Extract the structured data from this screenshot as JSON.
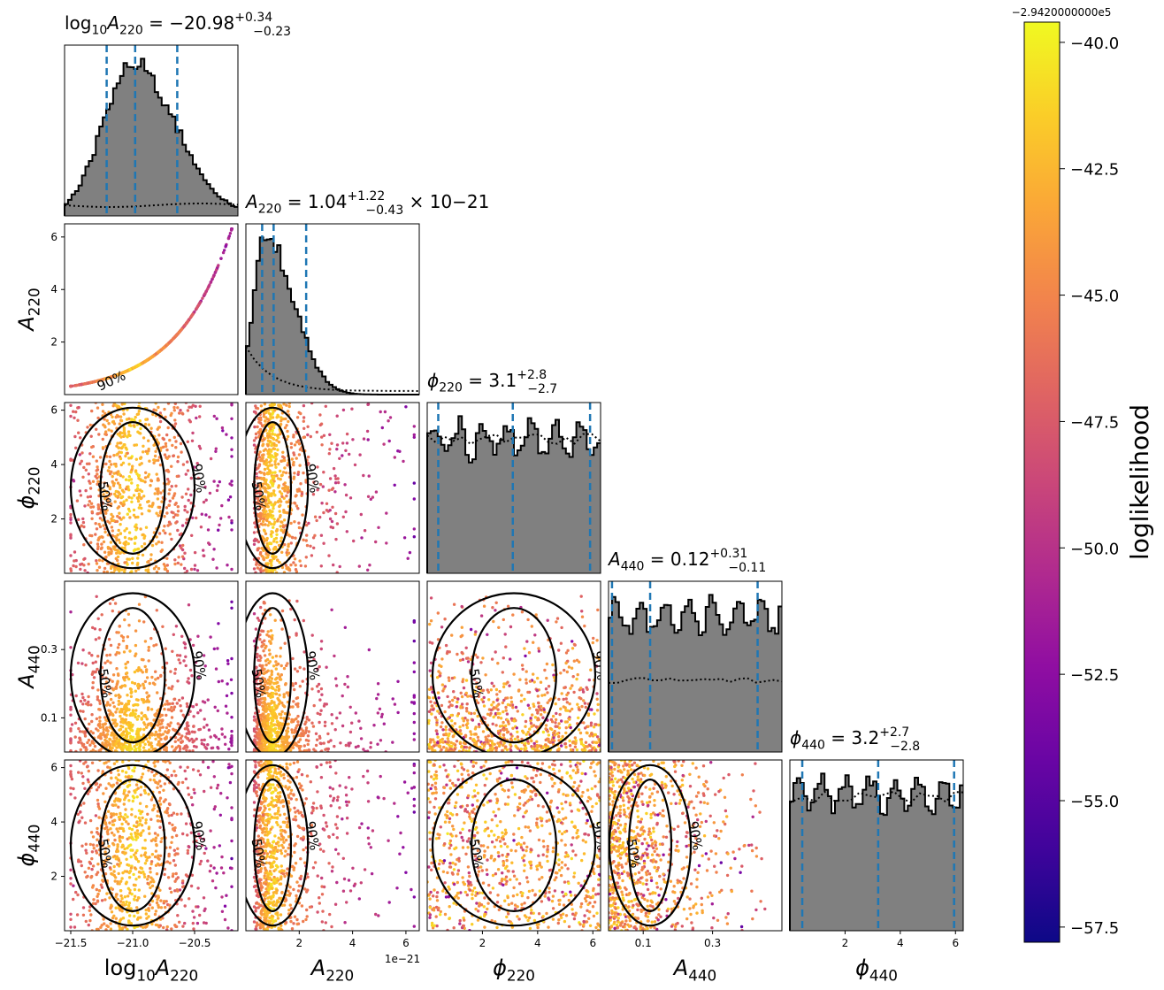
{
  "chart_data": {
    "type": "corner",
    "parameters": [
      {
        "key": "logA220",
        "label": "log10A220",
        "ticks": [
          -21.5,
          -21.0,
          -20.5
        ],
        "tick_labels": [
          "−21.5",
          "−21.0",
          "−20.5"
        ],
        "range": [
          -21.55,
          -20.15
        ],
        "title_value": "−20.98",
        "title_plus": "+0.34",
        "title_minus": "−0.23",
        "quantiles": [
          -21.21,
          -20.98,
          -20.64
        ],
        "hist_peak": -21.0,
        "hist_sigma": 0.24,
        "hist_skew": 0.45,
        "prior": "flat"
      },
      {
        "key": "A220",
        "label": "A220",
        "ticks": [
          2,
          4,
          6
        ],
        "tick_labels": [
          "2",
          "4",
          "6"
        ],
        "range": [
          0.0,
          6.5
        ],
        "offset_text": "1e−21",
        "title_value": "1.04",
        "title_plus": "+1.22",
        "title_minus": "−0.43",
        "title_suffix": "× 10−21",
        "quantiles": [
          0.61,
          1.04,
          2.26
        ],
        "hist_peak": 0.75,
        "hist_sigma": 0.45,
        "hist_skew": 1.3,
        "prior": "decay"
      },
      {
        "key": "phi220",
        "label": "φ220",
        "ticks": [
          2,
          4,
          6
        ],
        "tick_labels": [
          "2",
          "4",
          "6"
        ],
        "range": [
          0.0,
          6.28
        ],
        "title_value": "3.1",
        "title_plus": "+2.8",
        "title_minus": "−2.7",
        "quantiles": [
          0.4,
          3.1,
          5.9
        ],
        "prior": "uniform"
      },
      {
        "key": "A440",
        "label": "A440",
        "ticks": [
          0.1,
          0.3
        ],
        "tick_labels": [
          "0.1",
          "0.3"
        ],
        "range": [
          0.0,
          0.5
        ],
        "title_value": "0.12",
        "title_plus": "+0.31",
        "title_minus": "−0.11",
        "quantiles": [
          0.01,
          0.12,
          0.43
        ],
        "prior": "uniform"
      },
      {
        "key": "phi440",
        "label": "φ440",
        "ticks": [
          2,
          4,
          6
        ],
        "tick_labels": [
          "2",
          "4",
          "6"
        ],
        "range": [
          0.0,
          6.28
        ],
        "title_value": "3.2",
        "title_plus": "+2.7",
        "title_minus": "−2.8",
        "quantiles": [
          0.45,
          3.2,
          5.95
        ],
        "prior": "uniform"
      }
    ],
    "contour_levels": [
      "50%",
      "90%"
    ],
    "colorbar": {
      "label": "loglikelihood",
      "offset_text": "−2.9420000000e5",
      "range": [
        -57.8,
        -39.6
      ],
      "ticks": [
        -40.0,
        -42.5,
        -45.0,
        -47.5,
        -50.0,
        -52.5,
        -55.0,
        -57.5
      ],
      "tick_labels": [
        "−40.0",
        "−42.5",
        "−45.0",
        "−47.5",
        "−50.0",
        "−52.5",
        "−55.0",
        "−57.5"
      ],
      "colormap": "plasma"
    },
    "colors": {
      "histogram_fill": "#808080",
      "histogram_edge": "#000000",
      "quantile_line": "#1f77b4",
      "contour": "#000000",
      "prior": "#000000"
    }
  }
}
